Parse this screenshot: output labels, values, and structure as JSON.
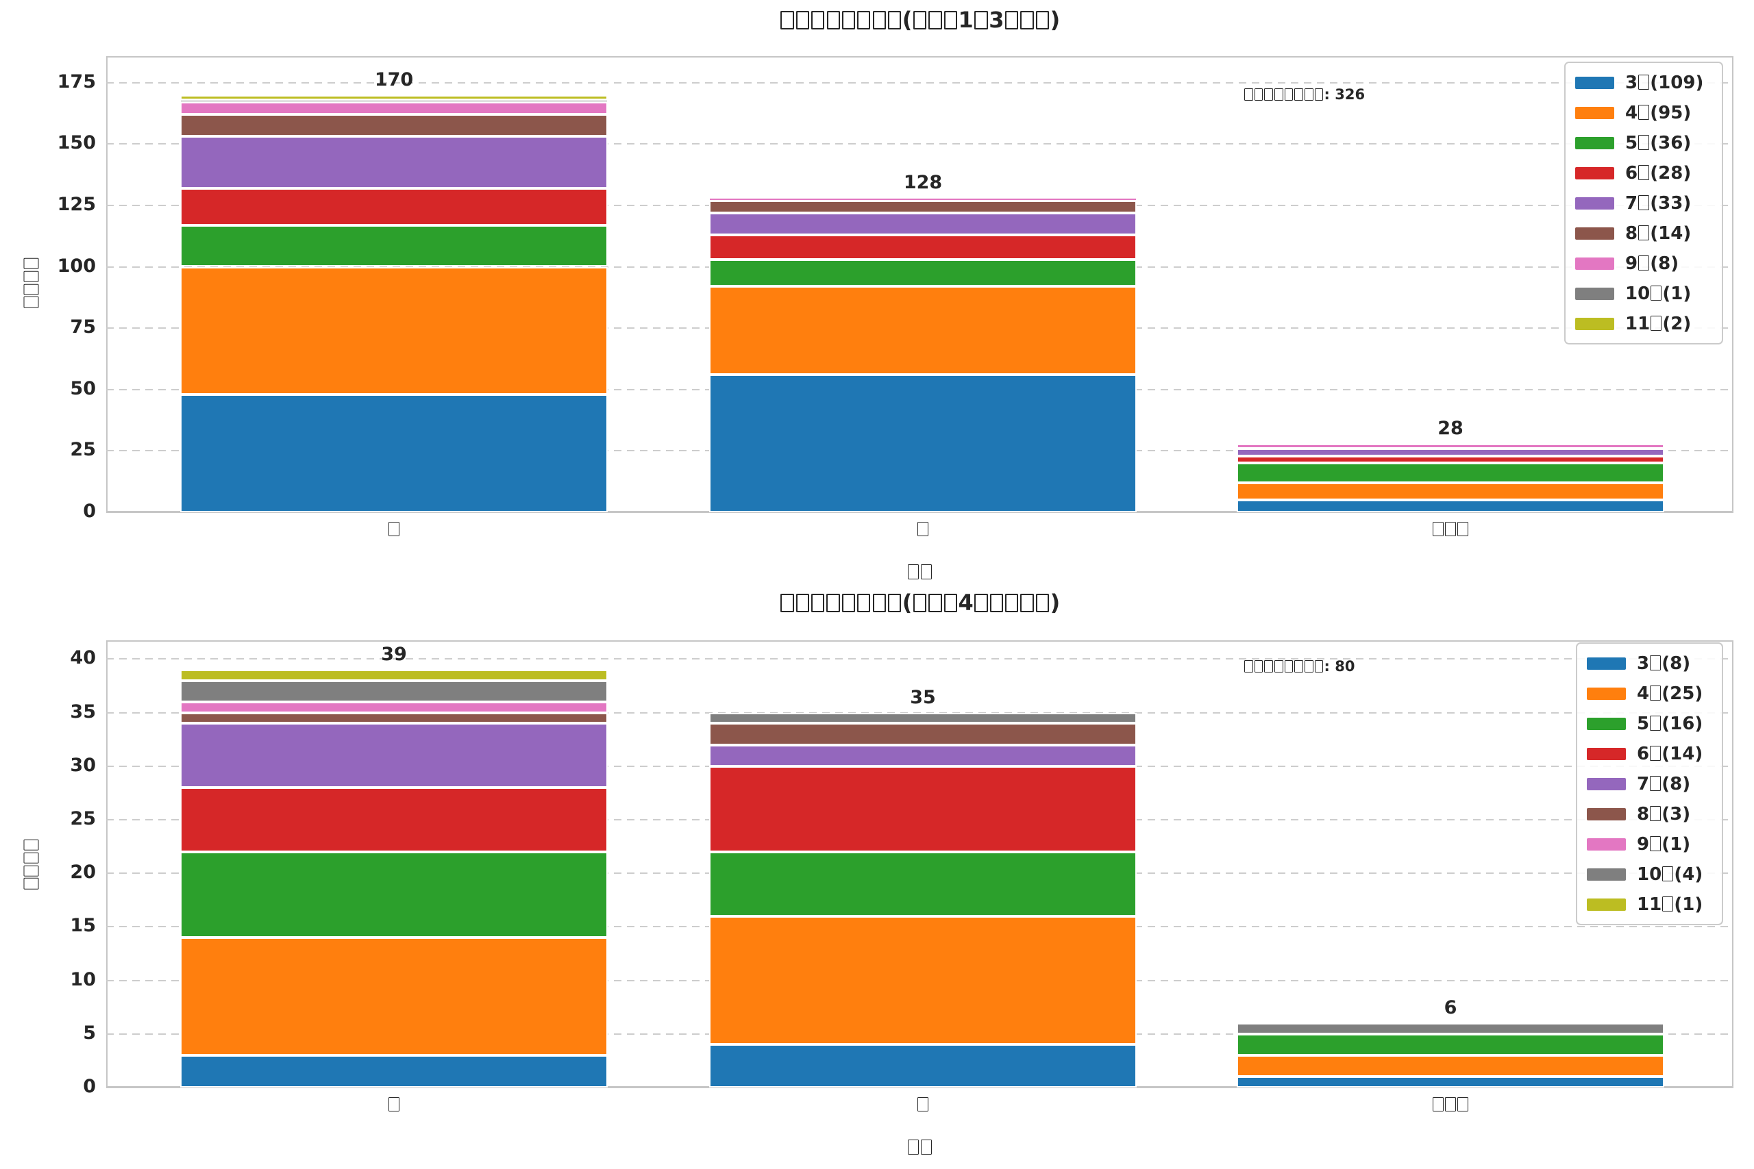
{
  "page": {
    "background": "#ffffff"
  },
  "colors": {
    "text": "#262626",
    "grid": "#cdcdcd",
    "spine": "#c6c6c6",
    "segment_edge": "#ffffff",
    "months": [
      "#1f77b4",
      "#ff7f0e",
      "#2ca02c",
      "#d62728",
      "#9467bd",
      "#8c564b",
      "#e377c2",
      "#7f7f7f",
      "#bcbd22"
    ]
  },
  "chart_data": [
    {
      "type": "bar",
      "stacked": true,
      "title": "□□□□□□□□(□□□1□3□□□)",
      "xlabel": "□□",
      "ylabel": "□□□□",
      "annotation": "□□□□□□□□: 326",
      "grand_total": 326,
      "ylim": [
        0,
        185.8
      ],
      "yticks": [
        0,
        25,
        50,
        75,
        100,
        125,
        150,
        175
      ],
      "grid": true,
      "legend_position": "upper right",
      "categories": [
        "□",
        "□",
        "□□□"
      ],
      "bar_totals": [
        170,
        128,
        28
      ],
      "series": [
        {
          "name": "3□",
          "legend_label": "3□(109)",
          "total": 109,
          "values": [
            48,
            56,
            5
          ]
        },
        {
          "name": "4□",
          "legend_label": "4□(95)",
          "total": 95,
          "values": [
            52,
            36,
            7
          ]
        },
        {
          "name": "5□",
          "legend_label": "5□(36)",
          "total": 36,
          "values": [
            17,
            11,
            8
          ]
        },
        {
          "name": "6□",
          "legend_label": "6□(28)",
          "total": 28,
          "values": [
            15,
            10,
            3
          ]
        },
        {
          "name": "7□",
          "legend_label": "7□(33)",
          "total": 33,
          "values": [
            21,
            9,
            3
          ]
        },
        {
          "name": "8□",
          "legend_label": "8□(14)",
          "total": 14,
          "values": [
            9,
            5,
            0
          ]
        },
        {
          "name": "9□",
          "legend_label": "9□(8)",
          "total": 8,
          "values": [
            5,
            1,
            2
          ]
        },
        {
          "name": "10□",
          "legend_label": "10□(1)",
          "total": 1,
          "values": [
            1,
            0,
            0
          ]
        },
        {
          "name": "11□",
          "legend_label": "11□(2)",
          "total": 2,
          "values": [
            2,
            0,
            0
          ]
        }
      ]
    },
    {
      "type": "bar",
      "stacked": true,
      "title": "□□□□□□□□(□□□4□□□□□)",
      "xlabel": "□□",
      "ylabel": "□□□□",
      "annotation": "□□□□□□□□: 80",
      "grand_total": 80,
      "ylim": [
        0,
        41.75
      ],
      "yticks": [
        0,
        5,
        10,
        15,
        20,
        25,
        30,
        35,
        40
      ],
      "grid": true,
      "legend_position": "upper right",
      "categories": [
        "□",
        "□",
        "□□□"
      ],
      "bar_totals": [
        39,
        35,
        6
      ],
      "series": [
        {
          "name": "3□",
          "legend_label": "3□(8)",
          "total": 8,
          "values": [
            3,
            4,
            1
          ]
        },
        {
          "name": "4□",
          "legend_label": "4□(25)",
          "total": 25,
          "values": [
            11,
            12,
            2
          ]
        },
        {
          "name": "5□",
          "legend_label": "5□(16)",
          "total": 16,
          "values": [
            8,
            6,
            2
          ]
        },
        {
          "name": "6□",
          "legend_label": "6□(14)",
          "total": 14,
          "values": [
            6,
            8,
            0
          ]
        },
        {
          "name": "7□",
          "legend_label": "7□(8)",
          "total": 8,
          "values": [
            6,
            2,
            0
          ]
        },
        {
          "name": "8□",
          "legend_label": "8□(3)",
          "total": 3,
          "values": [
            1,
            2,
            0
          ]
        },
        {
          "name": "9□",
          "legend_label": "9□(1)",
          "total": 1,
          "values": [
            1,
            0,
            0
          ]
        },
        {
          "name": "10□",
          "legend_label": "10□(4)",
          "total": 4,
          "values": [
            2,
            1,
            1
          ]
        },
        {
          "name": "11□",
          "legend_label": "11□(1)",
          "total": 1,
          "values": [
            1,
            0,
            0
          ]
        }
      ]
    }
  ]
}
